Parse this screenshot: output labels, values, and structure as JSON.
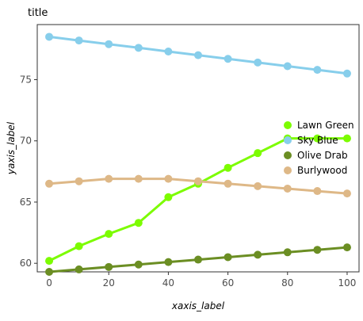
{
  "chart_data": {
    "type": "line",
    "title": "title",
    "xlabel": "xaxis_label",
    "ylabel": "yaxis_label",
    "xlim": [
      -4,
      104
    ],
    "ylim": [
      59.3,
      79.5
    ],
    "xticks": [
      0,
      20,
      40,
      60,
      80,
      100
    ],
    "yticks": [
      60,
      65,
      70,
      75
    ],
    "grid": false,
    "legend_position": "right",
    "series": [
      {
        "name": "Sky Blue",
        "color": "#87ceeb",
        "x": [
          0,
          10,
          20,
          30,
          40,
          50,
          60,
          70,
          80,
          90,
          100
        ],
        "y": [
          78.5,
          78.2,
          77.9,
          77.6,
          77.3,
          77.0,
          76.7,
          76.4,
          76.1,
          75.8,
          75.5
        ]
      },
      {
        "name": "Lawn Green",
        "color": "#7cfc00",
        "x": [
          0,
          10,
          20,
          30,
          40,
          50,
          60,
          70,
          80,
          90,
          100
        ],
        "y": [
          60.2,
          61.4,
          62.4,
          63.3,
          65.4,
          66.5,
          67.8,
          69.0,
          70.2,
          70.2,
          70.2
        ]
      },
      {
        "name": "Olive Drab",
        "color": "#6b8e23",
        "x": [
          0,
          10,
          20,
          30,
          40,
          50,
          60,
          70,
          80,
          90,
          100
        ],
        "y": [
          59.3,
          59.5,
          59.7,
          59.9,
          60.1,
          60.3,
          60.5,
          60.7,
          60.9,
          61.1,
          61.3
        ]
      },
      {
        "name": "Burlywood",
        "color": "#deb887",
        "x": [
          0,
          10,
          20,
          30,
          40,
          50,
          60,
          70,
          80,
          90,
          100
        ],
        "y": [
          66.5,
          66.7,
          66.9,
          66.9,
          66.9,
          66.7,
          66.5,
          66.3,
          66.1,
          65.9,
          65.7
        ]
      }
    ],
    "legend_order": [
      "Lawn Green",
      "Sky Blue",
      "Olive Drab",
      "Burlywood"
    ]
  }
}
